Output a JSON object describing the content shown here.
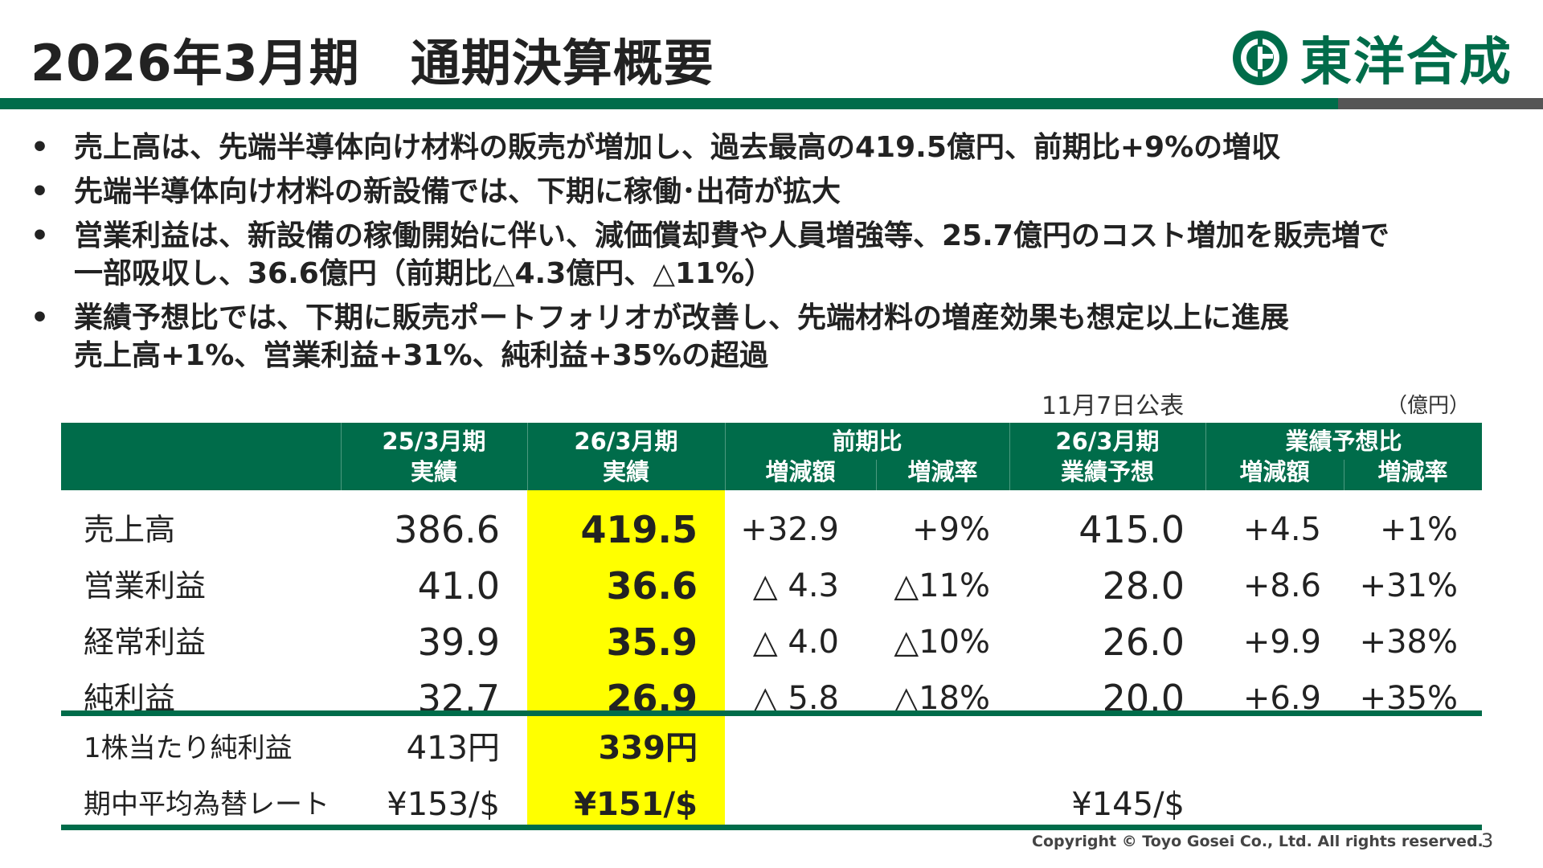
{
  "header": {
    "title": "2026年3月期　通期決算概要",
    "logo_text": "東洋合成",
    "logo_icon": "toyo-gosei-logo-icon",
    "brand_color": "#006C4A"
  },
  "bullets": [
    {
      "lines": [
        "売上高は、先端半導体向け材料の販売が増加し、過去最高の419.5億円、前期比+9%の増収"
      ]
    },
    {
      "lines": [
        "先端半導体向け材料の新設備では、下期に稼働･出荷が拡大"
      ]
    },
    {
      "lines": [
        "営業利益は、新設備の稼働開始に伴い、減価償却費や人員増強等、25.7億円のコスト増加を販売増で",
        "一部吸収し、36.6億円（前期比△4.3億円、△11%）"
      ]
    },
    {
      "lines": [
        "業績予想比では、下期に販売ポートフォリオが改善し、先端材料の増産効果も想定以上に進展",
        "売上高+1%、営業利益+31%、純利益+35%の超過"
      ]
    }
  ],
  "bullet_marker": "•",
  "table": {
    "note_date": "11月7日公表",
    "note_unit": "（億円）",
    "headers": {
      "prev_actual": [
        "25/3月期",
        "実績"
      ],
      "curr_actual": [
        "26/3月期",
        "実績"
      ],
      "yoy": "前期比",
      "yoy_sub": [
        "増減額",
        "増減率"
      ],
      "forecast": [
        "26/3月期",
        "業績予想"
      ],
      "vs_forecast": "業績予想比",
      "vs_forecast_sub": [
        "増減額",
        "増減率"
      ]
    },
    "rows": [
      {
        "label": "売上高",
        "prev": "386.6",
        "curr": "419.5",
        "yoy_amt": "+32.9",
        "yoy_rate": "+9%",
        "forecast": "415.0",
        "fc_amt": "+4.5",
        "fc_rate": "+1%"
      },
      {
        "label": "営業利益",
        "prev": "41.0",
        "curr": "36.6",
        "yoy_amt": "△ 4.3",
        "yoy_rate": "△11%",
        "forecast": "28.0",
        "fc_amt": "+8.6",
        "fc_rate": "+31%"
      },
      {
        "label": "経常利益",
        "prev": "39.9",
        "curr": "35.9",
        "yoy_amt": "△ 4.0",
        "yoy_rate": "△10%",
        "forecast": "26.0",
        "fc_amt": "+9.9",
        "fc_rate": "+38%"
      },
      {
        "label": "純利益",
        "prev": "32.7",
        "curr": "26.9",
        "yoy_amt": "△ 5.8",
        "yoy_rate": "△18%",
        "forecast": "20.0",
        "fc_amt": "+6.9",
        "fc_rate": "+35%"
      }
    ],
    "extra_rows": [
      {
        "label": "1株当たり純利益",
        "prev": "413円",
        "curr": "339円",
        "forecast": ""
      },
      {
        "label": "期中平均為替レート",
        "prev": "¥153/$",
        "curr": "¥151/$",
        "forecast": "¥145/$"
      }
    ],
    "highlight_color": "#FFFF00"
  },
  "footer": {
    "copyright": "Copyright © Toyo Gosei Co., Ltd. All rights reserved.",
    "page_number": "3"
  }
}
